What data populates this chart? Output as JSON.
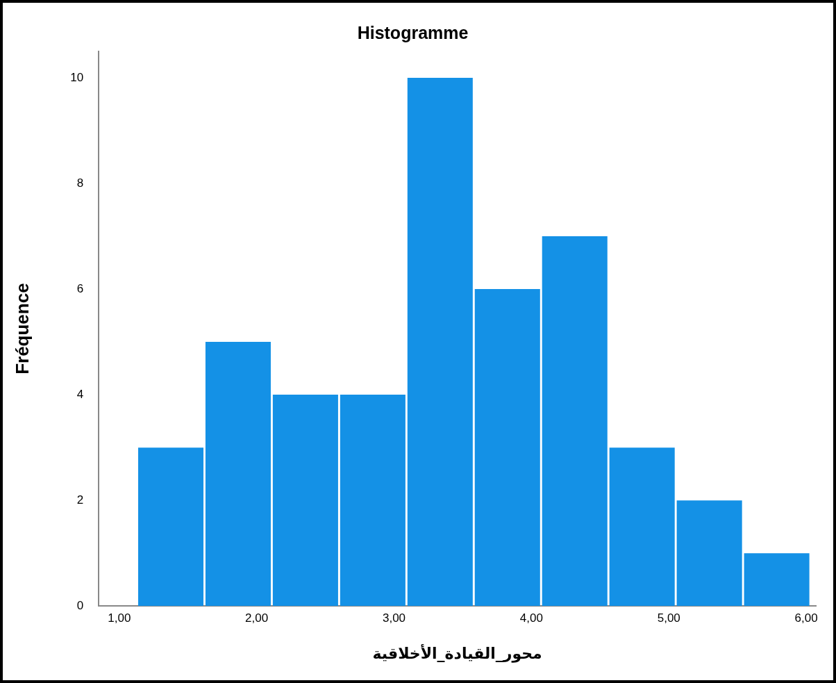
{
  "chart_data": {
    "type": "histogram",
    "title": "Histogramme",
    "xlabel": "محور_القيادة_الأخلاقية",
    "ylabel": "Fréquence",
    "bins": [
      1.13,
      1.62,
      2.11,
      2.6,
      3.09,
      3.58,
      4.07,
      4.56,
      5.05,
      5.54,
      6.03
    ],
    "values": [
      3,
      5,
      4,
      4,
      10,
      6,
      7,
      3,
      2,
      1
    ],
    "color": "#1491e6",
    "xlim": [
      0.85,
      6.07
    ],
    "xticks": [
      {
        "value": 1,
        "label": "1,00"
      },
      {
        "value": 2,
        "label": "2,00"
      },
      {
        "value": 3,
        "label": "3,00"
      },
      {
        "value": 4,
        "label": "4,00"
      },
      {
        "value": 5,
        "label": "5,00"
      },
      {
        "value": 6,
        "label": "6,00"
      }
    ],
    "ylim": [
      0,
      10.5
    ],
    "yticks": [
      0,
      2,
      4,
      6,
      8,
      10
    ],
    "grid": false,
    "legend": false
  }
}
